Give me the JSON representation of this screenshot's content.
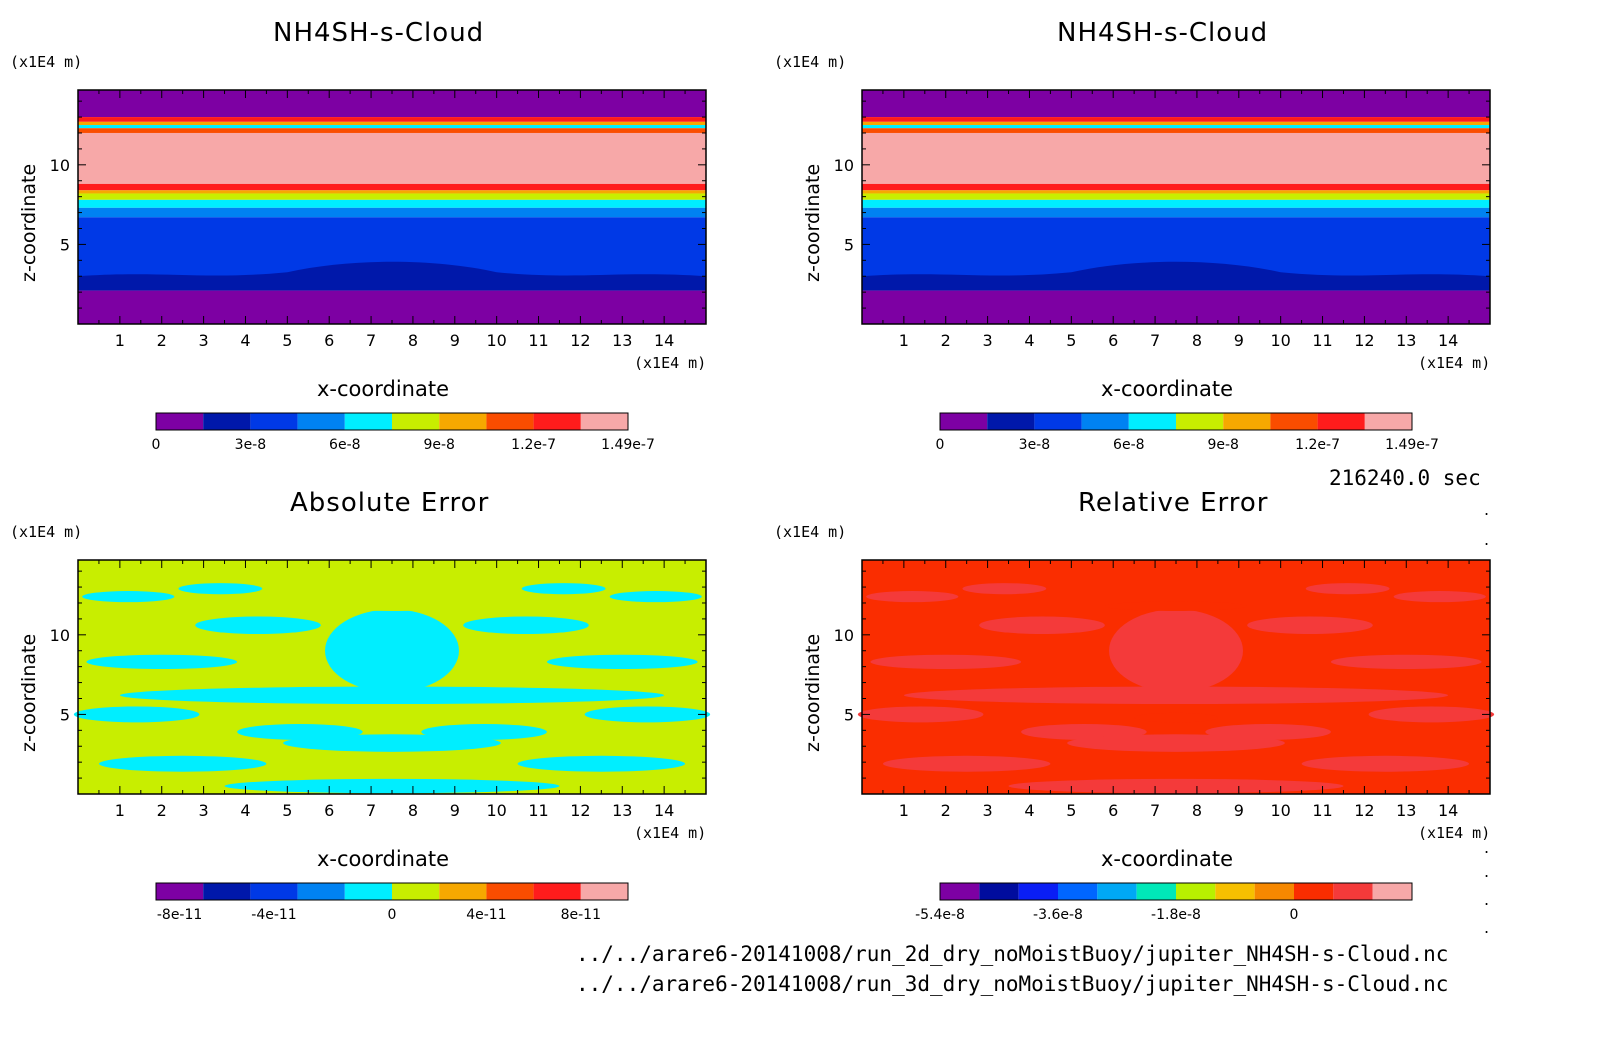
{
  "time_label": "216240.0 sec",
  "file_lines": [
    "../../arare6-20141008/run_2d_dry_noMoistBuoy/jupiter_NH4SH-s-Cloud.nc",
    "../../arare6-20141008/run_3d_dry_noMoistBuoy/jupiter_NH4SH-s-Cloud.nc"
  ],
  "chart_data": [
    {
      "type": "heatmap",
      "title": "NH4SH-s-Cloud",
      "xlabel": "x-coordinate",
      "ylabel": "z-coordinate",
      "x_unit": "(x1E4 m)",
      "y_unit": "(x1E4 m)",
      "xlim": [
        0,
        15
      ],
      "ylim": [
        0,
        14.7
      ],
      "x_ticks": [
        "1",
        "2",
        "3",
        "4",
        "5",
        "6",
        "7",
        "8",
        "9",
        "10",
        "11",
        "12",
        "13",
        "14"
      ],
      "y_ticks": [
        "5",
        "10"
      ],
      "colors": [
        "#7d00a3",
        "#0018aa",
        "#0039e6",
        "#0082f2",
        "#00eeff",
        "#c8ee00",
        "#f6a800",
        "#fa4d00",
        "#ff1c1c",
        "#f7a8a8"
      ],
      "colorbar_labels": [
        {
          "at": 0,
          "label": "0"
        },
        {
          "at": 2,
          "label": "3e-8"
        },
        {
          "at": 4,
          "label": "6e-8"
        },
        {
          "at": 6,
          "label": "9e-8"
        },
        {
          "at": 8,
          "label": "1.2e-7"
        },
        {
          "at": 10,
          "label": "1.49e-7"
        }
      ],
      "layers": [
        {
          "level": 0,
          "z": [
            14.7,
            13.0
          ]
        },
        {
          "level": 8,
          "z": [
            13.0,
            12.7
          ]
        },
        {
          "level": 6,
          "z": [
            12.7,
            12.5
          ]
        },
        {
          "level": 4,
          "z": [
            12.5,
            12.3
          ]
        },
        {
          "level": 7,
          "z": [
            12.3,
            12.0
          ]
        },
        {
          "level": 9,
          "z": [
            12.0,
            8.8
          ]
        },
        {
          "level": 8,
          "z": [
            8.8,
            8.4
          ]
        },
        {
          "level": 6,
          "z": [
            8.4,
            8.2
          ]
        },
        {
          "level": 5,
          "z": [
            8.2,
            7.8
          ]
        },
        {
          "level": 4,
          "z": [
            7.8,
            7.3
          ]
        },
        {
          "level": 3,
          "z": [
            7.3,
            6.7
          ]
        },
        {
          "level": 2,
          "z": [
            6.7,
            3.0
          ]
        },
        {
          "level": 1,
          "z": [
            3.0,
            2.1
          ]
        },
        {
          "level": 0,
          "z": [
            2.1,
            0
          ]
        }
      ]
    },
    {
      "type": "heatmap",
      "title": "NH4SH-s-Cloud",
      "xlabel": "x-coordinate",
      "ylabel": "z-coordinate",
      "x_unit": "(x1E4 m)",
      "y_unit": "(x1E4 m)",
      "xlim": [
        0,
        15
      ],
      "ylim": [
        0,
        14.7
      ],
      "x_ticks": [
        "1",
        "2",
        "3",
        "4",
        "5",
        "6",
        "7",
        "8",
        "9",
        "10",
        "11",
        "12",
        "13",
        "14"
      ],
      "y_ticks": [
        "5",
        "10"
      ],
      "colors": [
        "#7d00a3",
        "#0018aa",
        "#0039e6",
        "#0082f2",
        "#00eeff",
        "#c8ee00",
        "#f6a800",
        "#fa4d00",
        "#ff1c1c",
        "#f7a8a8"
      ],
      "colorbar_labels": [
        {
          "at": 0,
          "label": "0"
        },
        {
          "at": 2,
          "label": "3e-8"
        },
        {
          "at": 4,
          "label": "6e-8"
        },
        {
          "at": 6,
          "label": "9e-8"
        },
        {
          "at": 8,
          "label": "1.2e-7"
        },
        {
          "at": 10,
          "label": "1.49e-7"
        }
      ],
      "layers": [
        {
          "level": 0,
          "z": [
            14.7,
            13.0
          ]
        },
        {
          "level": 8,
          "z": [
            13.0,
            12.7
          ]
        },
        {
          "level": 6,
          "z": [
            12.7,
            12.5
          ]
        },
        {
          "level": 4,
          "z": [
            12.5,
            12.3
          ]
        },
        {
          "level": 7,
          "z": [
            12.3,
            12.0
          ]
        },
        {
          "level": 9,
          "z": [
            12.0,
            8.8
          ]
        },
        {
          "level": 8,
          "z": [
            8.8,
            8.4
          ]
        },
        {
          "level": 6,
          "z": [
            8.4,
            8.2
          ]
        },
        {
          "level": 5,
          "z": [
            8.2,
            7.8
          ]
        },
        {
          "level": 4,
          "z": [
            7.8,
            7.3
          ]
        },
        {
          "level": 3,
          "z": [
            7.3,
            6.7
          ]
        },
        {
          "level": 2,
          "z": [
            6.7,
            3.0
          ]
        },
        {
          "level": 1,
          "z": [
            3.0,
            2.1
          ]
        },
        {
          "level": 0,
          "z": [
            2.1,
            0
          ]
        }
      ]
    },
    {
      "type": "heatmap",
      "title": "Absolute Error",
      "xlabel": "x-coordinate",
      "ylabel": "z-coordinate",
      "x_unit": "(x1E4 m)",
      "y_unit": "(x1E4 m)",
      "xlim": [
        0,
        15
      ],
      "ylim": [
        0,
        14.7
      ],
      "x_ticks": [
        "1",
        "2",
        "3",
        "4",
        "5",
        "6",
        "7",
        "8",
        "9",
        "10",
        "11",
        "12",
        "13",
        "14"
      ],
      "y_ticks": [
        "5",
        "10"
      ],
      "colors": [
        "#7d00a3",
        "#0018aa",
        "#0039e6",
        "#0082f2",
        "#00eeff",
        "#c8ee00",
        "#f6a800",
        "#fa4d00",
        "#ff1c1c",
        "#f7a8a8"
      ],
      "colorbar_labels": [
        {
          "at": 0.5,
          "label": "-8e-11"
        },
        {
          "at": 2.5,
          "label": "-4e-11"
        },
        {
          "at": 5,
          "label": "0"
        },
        {
          "at": 7,
          "label": "4e-11"
        },
        {
          "at": 9,
          "label": "8e-11"
        }
      ],
      "background_level": 5,
      "blobs": [
        {
          "level": 4,
          "x": 7.5,
          "z": 9.0,
          "rx": 1.6,
          "rz": 2.6
        },
        {
          "level": 4,
          "x": 4.3,
          "z": 10.6,
          "rx": 1.5,
          "rz": 0.55
        },
        {
          "level": 4,
          "x": 10.7,
          "z": 10.6,
          "rx": 1.5,
          "rz": 0.55
        },
        {
          "level": 4,
          "x": 2.0,
          "z": 8.3,
          "rx": 1.8,
          "rz": 0.45
        },
        {
          "level": 4,
          "x": 13.0,
          "z": 8.3,
          "rx": 1.8,
          "rz": 0.45
        },
        {
          "level": 4,
          "x": 1.2,
          "z": 12.4,
          "rx": 1.1,
          "rz": 0.35
        },
        {
          "level": 4,
          "x": 13.8,
          "z": 12.4,
          "rx": 1.1,
          "rz": 0.35
        },
        {
          "level": 4,
          "x": 3.4,
          "z": 12.9,
          "rx": 1.0,
          "rz": 0.35
        },
        {
          "level": 4,
          "x": 11.6,
          "z": 12.9,
          "rx": 1.0,
          "rz": 0.35
        },
        {
          "level": 4,
          "x": 7.5,
          "z": 6.2,
          "rx": 6.5,
          "rz": 0.55
        },
        {
          "level": 4,
          "x": 1.4,
          "z": 5.0,
          "rx": 1.5,
          "rz": 0.5
        },
        {
          "level": 4,
          "x": 13.6,
          "z": 5.0,
          "rx": 1.5,
          "rz": 0.5
        },
        {
          "level": 4,
          "x": 5.3,
          "z": 3.9,
          "rx": 1.5,
          "rz": 0.5
        },
        {
          "level": 4,
          "x": 9.7,
          "z": 3.9,
          "rx": 1.5,
          "rz": 0.5
        },
        {
          "level": 4,
          "x": 7.5,
          "z": 3.2,
          "rx": 2.6,
          "rz": 0.55
        },
        {
          "level": 4,
          "x": 2.5,
          "z": 1.9,
          "rx": 2.0,
          "rz": 0.5
        },
        {
          "level": 4,
          "x": 12.5,
          "z": 1.9,
          "rx": 2.0,
          "rz": 0.5
        },
        {
          "level": 4,
          "x": 7.5,
          "z": 0.5,
          "rx": 4.0,
          "rz": 0.45
        },
        {
          "level": 5,
          "x": 7.5,
          "z": 11.8,
          "rx": 1.7,
          "rz": 0.3
        },
        {
          "level": 5,
          "x": 7.5,
          "z": 4.8,
          "rx": 1.0,
          "rz": 0.3
        }
      ]
    },
    {
      "type": "heatmap",
      "title": "Relative Error",
      "xlabel": "x-coordinate",
      "ylabel": "z-coordinate",
      "x_unit": "(x1E4 m)",
      "y_unit": "(x1E4 m)",
      "xlim": [
        0,
        15
      ],
      "ylim": [
        0,
        14.7
      ],
      "x_ticks": [
        "1",
        "2",
        "3",
        "4",
        "5",
        "6",
        "7",
        "8",
        "9",
        "10",
        "11",
        "12",
        "13",
        "14"
      ],
      "y_ticks": [
        "5",
        "10"
      ],
      "colors": [
        "#7d00a3",
        "#000c9e",
        "#0a1ef5",
        "#0066ff",
        "#00a8f5",
        "#00e8b8",
        "#b8f000",
        "#f6c000",
        "#f68800",
        "#fa2d00",
        "#f43a3a",
        "#f7a8a8"
      ],
      "colorbar_labels": [
        {
          "at": 0,
          "label": "-5.4e-8"
        },
        {
          "at": 3,
          "label": "-3.6e-8"
        },
        {
          "at": 6,
          "label": "-1.8e-8"
        },
        {
          "at": 9,
          "label": "0"
        }
      ],
      "background_level": 9,
      "blobs": [
        {
          "level": 10,
          "x": 7.5,
          "z": 9.0,
          "rx": 1.6,
          "rz": 2.6
        },
        {
          "level": 10,
          "x": 4.3,
          "z": 10.6,
          "rx": 1.5,
          "rz": 0.55
        },
        {
          "level": 10,
          "x": 10.7,
          "z": 10.6,
          "rx": 1.5,
          "rz": 0.55
        },
        {
          "level": 10,
          "x": 2.0,
          "z": 8.3,
          "rx": 1.8,
          "rz": 0.45
        },
        {
          "level": 10,
          "x": 13.0,
          "z": 8.3,
          "rx": 1.8,
          "rz": 0.45
        },
        {
          "level": 10,
          "x": 1.2,
          "z": 12.4,
          "rx": 1.1,
          "rz": 0.35
        },
        {
          "level": 10,
          "x": 13.8,
          "z": 12.4,
          "rx": 1.1,
          "rz": 0.35
        },
        {
          "level": 10,
          "x": 3.4,
          "z": 12.9,
          "rx": 1.0,
          "rz": 0.35
        },
        {
          "level": 10,
          "x": 11.6,
          "z": 12.9,
          "rx": 1.0,
          "rz": 0.35
        },
        {
          "level": 10,
          "x": 7.5,
          "z": 6.2,
          "rx": 6.5,
          "rz": 0.55
        },
        {
          "level": 10,
          "x": 1.4,
          "z": 5.0,
          "rx": 1.5,
          "rz": 0.5
        },
        {
          "level": 10,
          "x": 13.6,
          "z": 5.0,
          "rx": 1.5,
          "rz": 0.5
        },
        {
          "level": 10,
          "x": 5.3,
          "z": 3.9,
          "rx": 1.5,
          "rz": 0.5
        },
        {
          "level": 10,
          "x": 9.7,
          "z": 3.9,
          "rx": 1.5,
          "rz": 0.5
        },
        {
          "level": 10,
          "x": 7.5,
          "z": 3.2,
          "rx": 2.6,
          "rz": 0.55
        },
        {
          "level": 10,
          "x": 2.5,
          "z": 1.9,
          "rx": 2.0,
          "rz": 0.5
        },
        {
          "level": 10,
          "x": 12.5,
          "z": 1.9,
          "rx": 2.0,
          "rz": 0.5
        },
        {
          "level": 10,
          "x": 7.5,
          "z": 0.5,
          "rx": 4.0,
          "rz": 0.45
        },
        {
          "level": 9,
          "x": 7.5,
          "z": 11.8,
          "rx": 1.7,
          "rz": 0.3
        },
        {
          "level": 9,
          "x": 7.5,
          "z": 4.8,
          "rx": 1.0,
          "rz": 0.3
        }
      ]
    }
  ]
}
